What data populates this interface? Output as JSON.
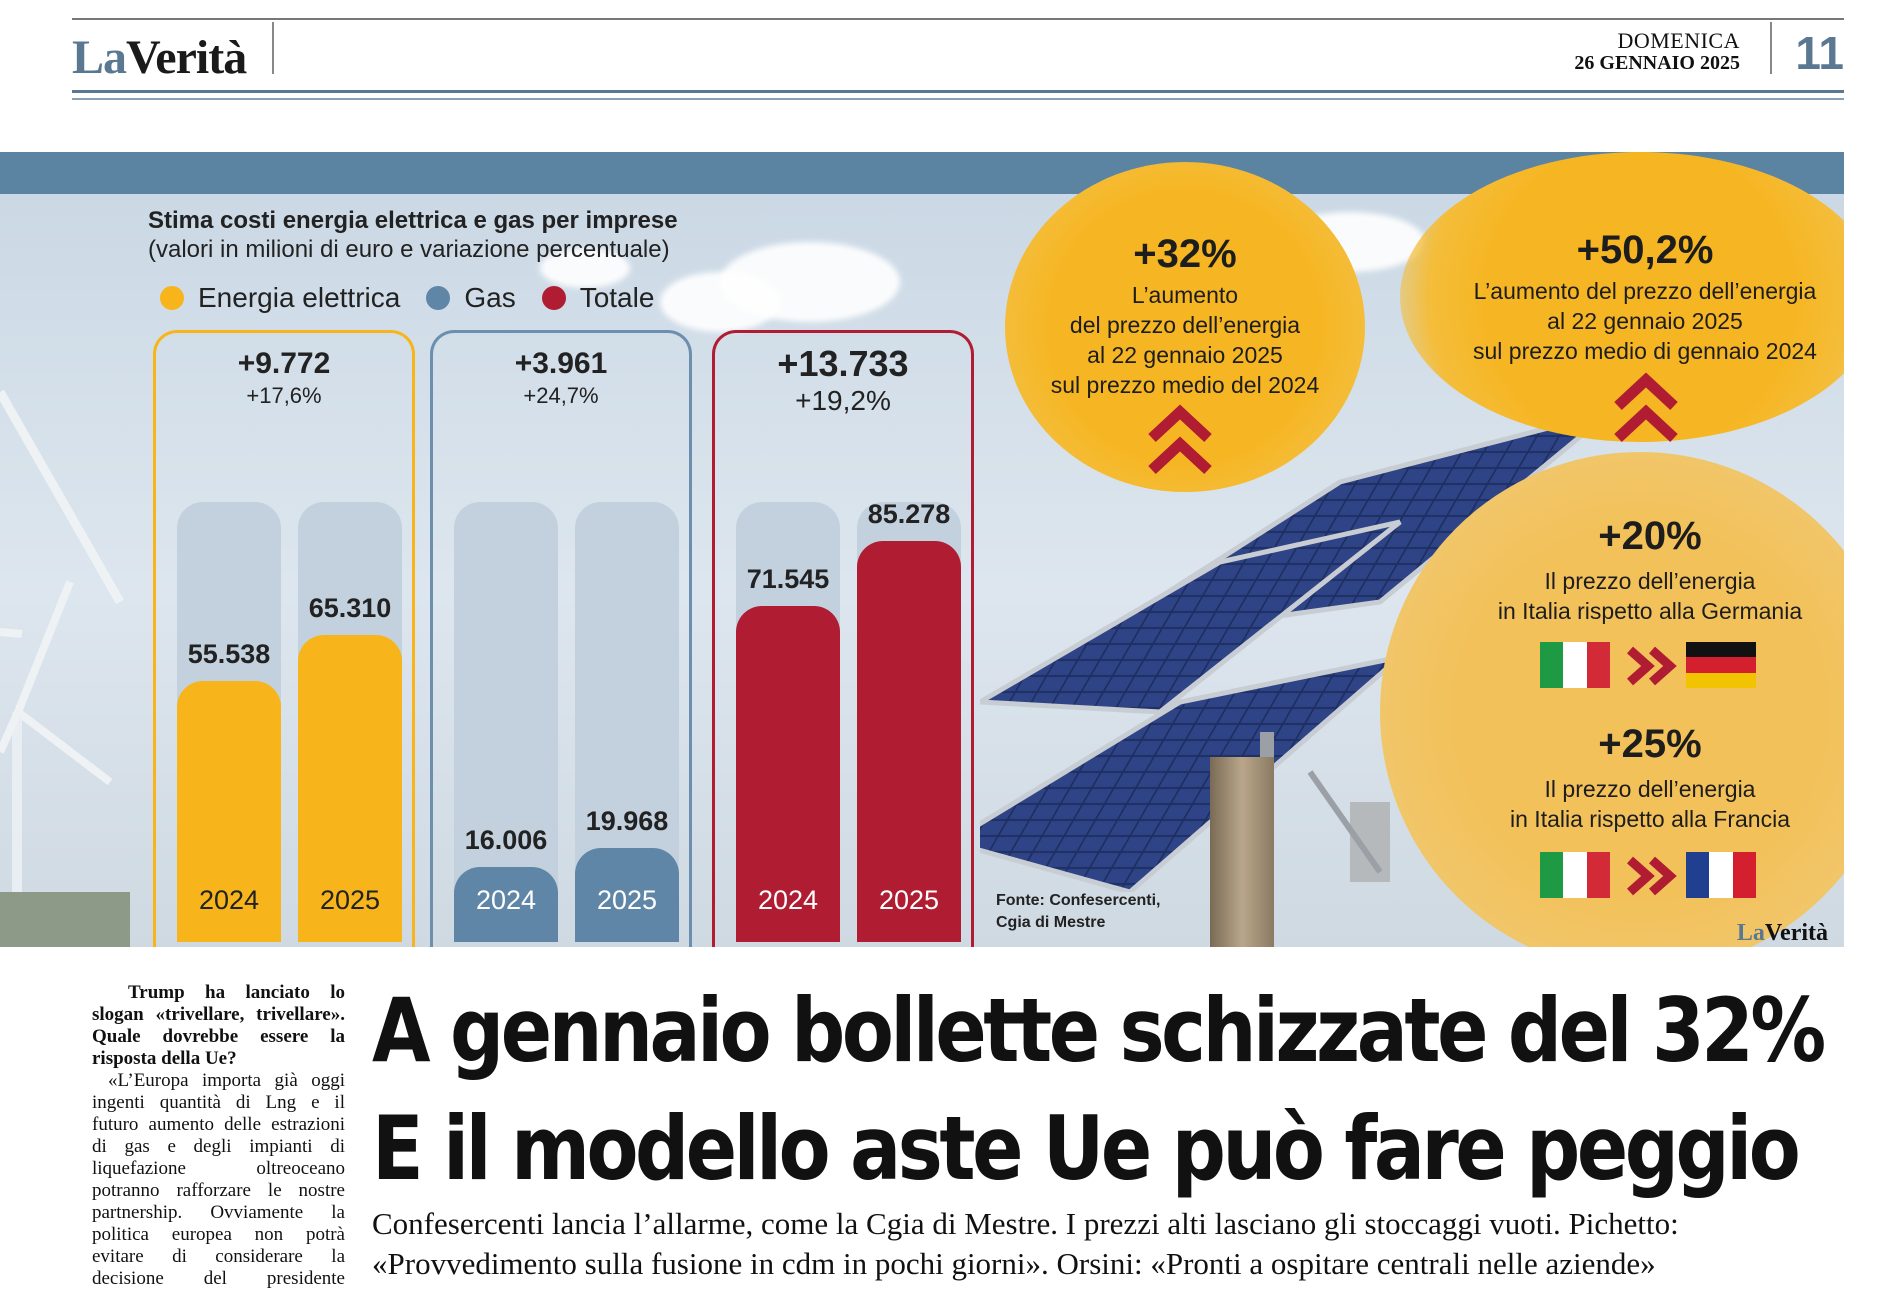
{
  "masthead": {
    "logo_la": "La",
    "logo_verita": "Verità",
    "day": "DOMENICA",
    "date": "26 GENNAIO 2025",
    "page": "11"
  },
  "graphic": {
    "title": "Stima costi energia elettrica e gas per imprese",
    "subtitle": "(valori in milioni di euro e variazione percentuale)",
    "source_line1": "Fonte: Confesercenti,",
    "source_line2": "Cgia di Mestre",
    "watermark_la": "La",
    "watermark_verita": "Verità"
  },
  "chart_data": {
    "type": "bar",
    "title": "Stima costi energia elettrica e gas per imprese",
    "subtitle": "(valori in milioni di euro e variazione percentuale)",
    "categories": [
      "2024",
      "2025"
    ],
    "legend": "top-left",
    "series": [
      {
        "name": "Energia elettrica",
        "color": "#f7b51b",
        "values": [
          55538,
          65310
        ],
        "labels": [
          "55.538",
          "65.310"
        ],
        "delta": "+9.772",
        "pct": "+17,6%"
      },
      {
        "name": "Gas",
        "color": "#5f86a6",
        "values": [
          16006,
          19968
        ],
        "labels": [
          "16.006",
          "19.968"
        ],
        "delta": "+3.961",
        "pct": "+24,7%"
      },
      {
        "name": "Totale",
        "color": "#b01c32",
        "values": [
          71545,
          85278
        ],
        "labels": [
          "71.545",
          "85.278"
        ],
        "delta": "+13.733",
        "pct": "+19,2%"
      }
    ],
    "ylim": [
      0,
      100000
    ]
  },
  "callouts": {
    "c1_value": "+32%",
    "c1_l1": "L’aumento",
    "c1_l2": "del prezzo dell’energia",
    "c1_l3": "al 22 gennaio 2025",
    "c1_l4": "sul prezzo medio del 2024",
    "c2_value": "+50,2%",
    "c2_l1": "L’aumento del prezzo dell’energia",
    "c2_l2": "al 22 gennaio 2025",
    "c2_l3": "sul prezzo medio di gennaio 2024",
    "c3_value": "+20%",
    "c3_l1": "Il prezzo dell’energia",
    "c3_l2": "in Italia rispetto alla Germania",
    "c4_value": "+25%",
    "c4_l1": "Il prezzo dell’energia",
    "c4_l2": "in Italia rispetto alla Francia",
    "accent": "#b01c32",
    "blob_color": "#f6b623"
  },
  "article": {
    "question": "Trump ha lanciato lo slogan «trivellare, trivellare». Quale dovrebbe essere la risposta della Ue?",
    "answer": "«L’Europa importa già oggi ingenti quantità di Lng e il futuro aumento delle estrazioni di gas e degli impianti di liquefazione oltreoceano potranno rafforzare le nostre partnership. Ovviamente la politica europea non potrà evitare di considerare la decisione del presidente statunitense di uscire dal",
    "headline_line1": "A gennaio bollette schizzate del 32%",
    "headline_line2": "E il modello aste Ue può fare peggio",
    "deck": "Confesercenti lancia l’allarme, come la Cgia di Mestre. I prezzi alti lasciano gli stoccaggi vuoti. Pichetto: «Provvedimento sulla fusione in cdm in pochi giorni». Orsini: «Pronti a ospitare centrali nelle aziende»"
  }
}
